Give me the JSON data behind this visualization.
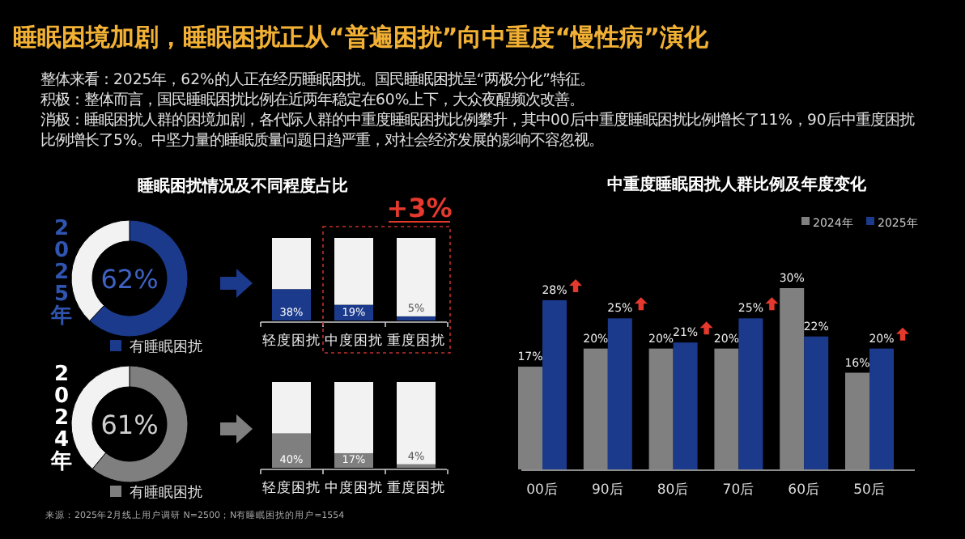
{
  "chart_data": [
    {
      "type": "other",
      "title": "睡眠困境加剧，睡眠困扰正从“普遍困扰”向中重度“慢性病”演化",
      "annotations": [
        "整体来看：2025年，62%的人正在经历睡眠困扰。国民睡眠困扰呈“两极分化”特征。",
        "积极：整体而言，国民睡眠困扰比例在近两年稳定在60%上下，大众夜醒频次改善。",
        "消极：睡眠困扰人群的困境加剧，各代际人群的中重度睡眠困扰比例攀升，其中00后中重度睡眠困扰比例增长了11%，90后中重度困扰比例增长了5%。中坚力量的睡眠质量问题日趋严重，对社会经济发展的影响不容忽视。",
        "来源：2025年2月线上用户调研 N=2500；N有睡眠困扰的用户=1554"
      ]
    },
    {
      "type": "donut",
      "title": "睡眠困扰情况及不同程度占比",
      "ylabel": "2025年",
      "categories": [
        "有睡眠困扰",
        null
      ],
      "values": [
        62,
        38
      ],
      "colors": [
        "#1b3a8c",
        "#f2f2f2"
      ],
      "value_labels": [
        "62%",
        null
      ],
      "legend": "bottom"
    },
    {
      "type": "bar",
      "stacked": true,
      "categories": [
        "轻度困扰",
        "中度困扰",
        "重度困扰"
      ],
      "annotations": [
        "+3%"
      ],
      "series": [
        {
          "color": "#1b3a8c",
          "values": [
            38,
            19,
            5
          ],
          "value_labels": [
            "38%",
            "19%",
            "5%"
          ]
        },
        {
          "color": "#f2f2f2",
          "values": [
            62,
            81,
            95
          ]
        }
      ]
    },
    {
      "type": "donut",
      "ylabel": "2024年",
      "categories": [
        "有睡眠困扰",
        null
      ],
      "values": [
        61,
        39
      ],
      "colors": [
        "#7f7f7f",
        "#f2f2f2"
      ],
      "value_labels": [
        "61%",
        null
      ],
      "legend": "bottom"
    },
    {
      "type": "bar",
      "stacked": true,
      "categories": [
        "轻度困扰",
        "中度困扰",
        "重度困扰"
      ],
      "series": [
        {
          "color": "#7f7f7f",
          "values": [
            40,
            17,
            4
          ],
          "value_labels": [
            "40%",
            "17%",
            "4%"
          ]
        },
        {
          "color": "#f2f2f2",
          "values": [
            60,
            83,
            96
          ]
        }
      ]
    },
    {
      "type": "bar",
      "title": "中重度睡眠困扰人群比例及年度变化",
      "categories": [
        "00后",
        "90后",
        "80后",
        "70后",
        "60后",
        "50后"
      ],
      "legend": "top right",
      "series": [
        {
          "name": "2024年",
          "color": "#808080",
          "values": [
            17,
            20,
            20,
            20,
            30,
            16
          ],
          "value_labels": [
            "17%",
            "20%",
            "20%",
            "20%",
            "30%",
            "16%"
          ]
        },
        {
          "name": "2025年",
          "color": "#1b3a8c",
          "values": [
            28,
            25,
            21,
            25,
            22,
            20
          ],
          "value_labels": [
            "28%",
            "25%",
            "21%",
            "25%",
            "22%",
            "20%"
          ]
        }
      ]
    }
  ]
}
